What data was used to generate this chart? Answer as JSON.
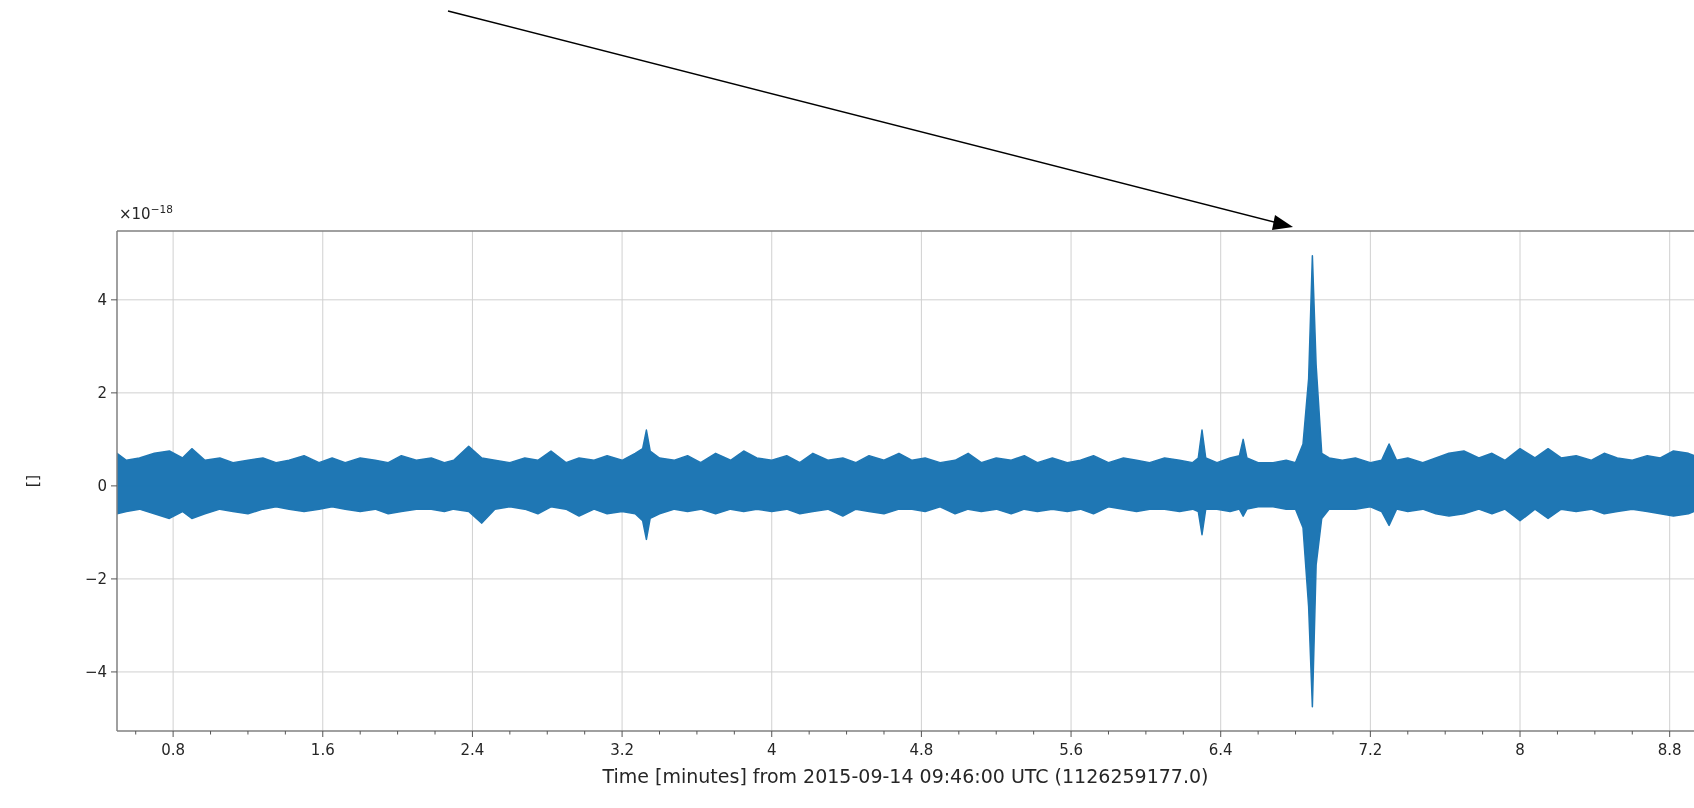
{
  "chart_data": {
    "type": "line",
    "xlabel": "Time [minutes] from 2015-09-14 09:46:00 UTC (1126259177.0)",
    "ylabel": "[]",
    "annotations": [
      "×10$^{−18}$"
    ],
    "xlim": [
      0.5,
      8.93
    ],
    "ylim": [
      -5.27,
      5.48
    ],
    "xticks": [
      {
        "value": 0.6,
        "label": null
      },
      0.8,
      {
        "value": 1.0,
        "label": null
      },
      {
        "value": 1.2,
        "label": null
      },
      {
        "value": 1.4,
        "label": null
      },
      1.6,
      {
        "value": 1.8,
        "label": null
      },
      {
        "value": 2.0,
        "label": null
      },
      {
        "value": 2.2,
        "label": null
      },
      2.4,
      {
        "value": 2.6,
        "label": null
      },
      {
        "value": 2.8,
        "label": null
      },
      {
        "value": 3.0,
        "label": null
      },
      3.2,
      {
        "value": 3.4,
        "label": null
      },
      {
        "value": 3.6,
        "label": null
      },
      {
        "value": 3.8,
        "label": null
      },
      4,
      {
        "value": 4.2,
        "label": null
      },
      {
        "value": 4.4,
        "label": null
      },
      {
        "value": 4.6,
        "label": null
      },
      4.8,
      {
        "value": 5.0,
        "label": null
      },
      {
        "value": 5.2,
        "label": null
      },
      {
        "value": 5.4,
        "label": null
      },
      5.6,
      {
        "value": 5.8,
        "label": null
      },
      {
        "value": 6.0,
        "label": null
      },
      {
        "value": 6.2,
        "label": null
      },
      6.4,
      {
        "value": 6.6,
        "label": null
      },
      {
        "value": 6.8,
        "label": null
      },
      {
        "value": 7.0,
        "label": null
      },
      7.2,
      {
        "value": 7.4,
        "label": null
      },
      {
        "value": 7.6,
        "label": null
      },
      {
        "value": 7.8,
        "label": null
      },
      8,
      {
        "value": 8.2,
        "label": null
      },
      {
        "value": 8.4,
        "label": null
      },
      {
        "value": 8.6,
        "label": null
      },
      8.8
    ],
    "yticks": [
      {
        "value": -4,
        "label": "−4"
      },
      {
        "value": -2,
        "label": "−2"
      },
      0,
      2,
      4
    ],
    "grid": true,
    "series": [
      {
        "color": "#1f77b4",
        "x": [
          0.5,
          0.55,
          0.62,
          0.7,
          0.78,
          0.85,
          0.9,
          0.97,
          1.05,
          1.12,
          1.2,
          1.28,
          1.35,
          1.42,
          1.5,
          1.58,
          1.65,
          1.72,
          1.8,
          1.88,
          1.95,
          2.02,
          2.1,
          2.18,
          2.25,
          2.3,
          2.38,
          2.45,
          2.52,
          2.6,
          2.68,
          2.75,
          2.82,
          2.9,
          2.97,
          3.05,
          3.12,
          3.2,
          3.27,
          3.31,
          3.33,
          3.35,
          3.4,
          3.48,
          3.55,
          3.62,
          3.7,
          3.78,
          3.85,
          3.92,
          4.0,
          4.08,
          4.15,
          4.22,
          4.3,
          4.38,
          4.45,
          4.52,
          4.6,
          4.68,
          4.75,
          4.82,
          4.9,
          4.98,
          5.05,
          5.12,
          5.2,
          5.28,
          5.35,
          5.42,
          5.5,
          5.58,
          5.65,
          5.72,
          5.8,
          5.88,
          5.95,
          6.02,
          6.1,
          6.18,
          6.25,
          6.28,
          6.3,
          6.32,
          6.38,
          6.45,
          6.5,
          6.52,
          6.54,
          6.6,
          6.68,
          6.75,
          6.8,
          6.84,
          6.87,
          6.89,
          6.91,
          6.94,
          6.98,
          7.05,
          7.12,
          7.2,
          7.26,
          7.3,
          7.34,
          7.4,
          7.48,
          7.55,
          7.62,
          7.7,
          7.78,
          7.85,
          7.92,
          8.0,
          8.08,
          8.15,
          8.22,
          8.3,
          8.38,
          8.45,
          8.52,
          8.6,
          8.68,
          8.75,
          8.82,
          8.9,
          8.93
        ],
        "values": [
          0,
          0,
          0,
          0,
          0,
          0,
          0,
          0,
          0,
          0,
          0,
          0,
          0,
          0,
          0,
          0,
          0,
          0,
          0,
          0,
          0,
          0,
          0,
          0,
          0,
          0,
          0,
          0,
          0,
          0,
          0,
          0,
          0,
          0,
          0,
          0,
          0,
          0,
          0,
          0,
          0,
          0,
          0,
          0,
          0,
          0,
          0,
          0,
          0,
          0,
          0,
          0,
          0,
          0,
          0,
          0,
          0,
          0,
          0,
          0,
          0,
          0,
          0,
          0,
          0,
          0,
          0,
          0,
          0,
          0,
          0,
          0,
          0,
          0,
          0,
          0,
          0,
          0,
          0,
          0,
          0,
          0,
          0,
          0,
          0,
          0,
          0,
          0,
          0,
          0,
          0,
          0,
          0,
          0,
          0,
          0,
          0,
          0,
          0,
          0,
          0,
          0,
          0,
          0,
          0,
          0,
          0,
          0,
          0,
          0,
          0,
          0,
          0,
          0,
          0,
          0,
          0,
          0,
          0,
          0,
          0,
          0,
          0,
          0,
          0,
          0,
          0
        ],
        "upper": [
          0.7,
          0.55,
          0.6,
          0.7,
          0.75,
          0.6,
          0.8,
          0.55,
          0.6,
          0.5,
          0.55,
          0.6,
          0.5,
          0.55,
          0.65,
          0.5,
          0.6,
          0.5,
          0.6,
          0.55,
          0.5,
          0.65,
          0.55,
          0.6,
          0.5,
          0.55,
          0.85,
          0.6,
          0.55,
          0.5,
          0.6,
          0.55,
          0.75,
          0.5,
          0.6,
          0.55,
          0.65,
          0.55,
          0.7,
          0.8,
          1.2,
          0.75,
          0.6,
          0.55,
          0.65,
          0.5,
          0.7,
          0.55,
          0.75,
          0.6,
          0.55,
          0.65,
          0.5,
          0.7,
          0.55,
          0.6,
          0.5,
          0.65,
          0.55,
          0.7,
          0.55,
          0.6,
          0.5,
          0.55,
          0.7,
          0.5,
          0.6,
          0.55,
          0.65,
          0.5,
          0.6,
          0.5,
          0.55,
          0.65,
          0.5,
          0.6,
          0.55,
          0.5,
          0.6,
          0.55,
          0.5,
          0.6,
          1.2,
          0.6,
          0.5,
          0.6,
          0.65,
          1.0,
          0.6,
          0.5,
          0.5,
          0.55,
          0.5,
          0.9,
          2.3,
          4.95,
          2.6,
          0.7,
          0.6,
          0.55,
          0.6,
          0.5,
          0.55,
          0.9,
          0.55,
          0.6,
          0.5,
          0.6,
          0.7,
          0.75,
          0.6,
          0.7,
          0.55,
          0.8,
          0.6,
          0.8,
          0.6,
          0.65,
          0.55,
          0.7,
          0.6,
          0.55,
          0.65,
          0.6,
          0.75,
          0.7,
          0.65
        ],
        "lower": [
          -0.6,
          -0.55,
          -0.5,
          -0.6,
          -0.7,
          -0.55,
          -0.7,
          -0.6,
          -0.5,
          -0.55,
          -0.6,
          -0.5,
          -0.45,
          -0.5,
          -0.55,
          -0.5,
          -0.45,
          -0.5,
          -0.55,
          -0.5,
          -0.6,
          -0.55,
          -0.5,
          -0.5,
          -0.55,
          -0.5,
          -0.55,
          -0.8,
          -0.5,
          -0.45,
          -0.5,
          -0.6,
          -0.45,
          -0.5,
          -0.65,
          -0.5,
          -0.6,
          -0.55,
          -0.6,
          -0.75,
          -1.15,
          -0.7,
          -0.6,
          -0.5,
          -0.55,
          -0.5,
          -0.6,
          -0.5,
          -0.55,
          -0.5,
          -0.55,
          -0.5,
          -0.6,
          -0.55,
          -0.5,
          -0.65,
          -0.5,
          -0.55,
          -0.6,
          -0.5,
          -0.5,
          -0.55,
          -0.45,
          -0.6,
          -0.5,
          -0.55,
          -0.5,
          -0.6,
          -0.5,
          -0.55,
          -0.5,
          -0.55,
          -0.5,
          -0.6,
          -0.45,
          -0.5,
          -0.55,
          -0.5,
          -0.5,
          -0.55,
          -0.5,
          -0.55,
          -1.05,
          -0.5,
          -0.5,
          -0.55,
          -0.5,
          -0.65,
          -0.5,
          -0.45,
          -0.45,
          -0.5,
          -0.5,
          -0.9,
          -2.6,
          -4.75,
          -1.7,
          -0.7,
          -0.5,
          -0.5,
          -0.5,
          -0.45,
          -0.55,
          -0.85,
          -0.5,
          -0.55,
          -0.5,
          -0.6,
          -0.65,
          -0.6,
          -0.5,
          -0.6,
          -0.5,
          -0.75,
          -0.5,
          -0.7,
          -0.5,
          -0.55,
          -0.5,
          -0.6,
          -0.55,
          -0.5,
          -0.55,
          -0.6,
          -0.65,
          -0.6,
          -0.55
        ]
      }
    ]
  }
}
